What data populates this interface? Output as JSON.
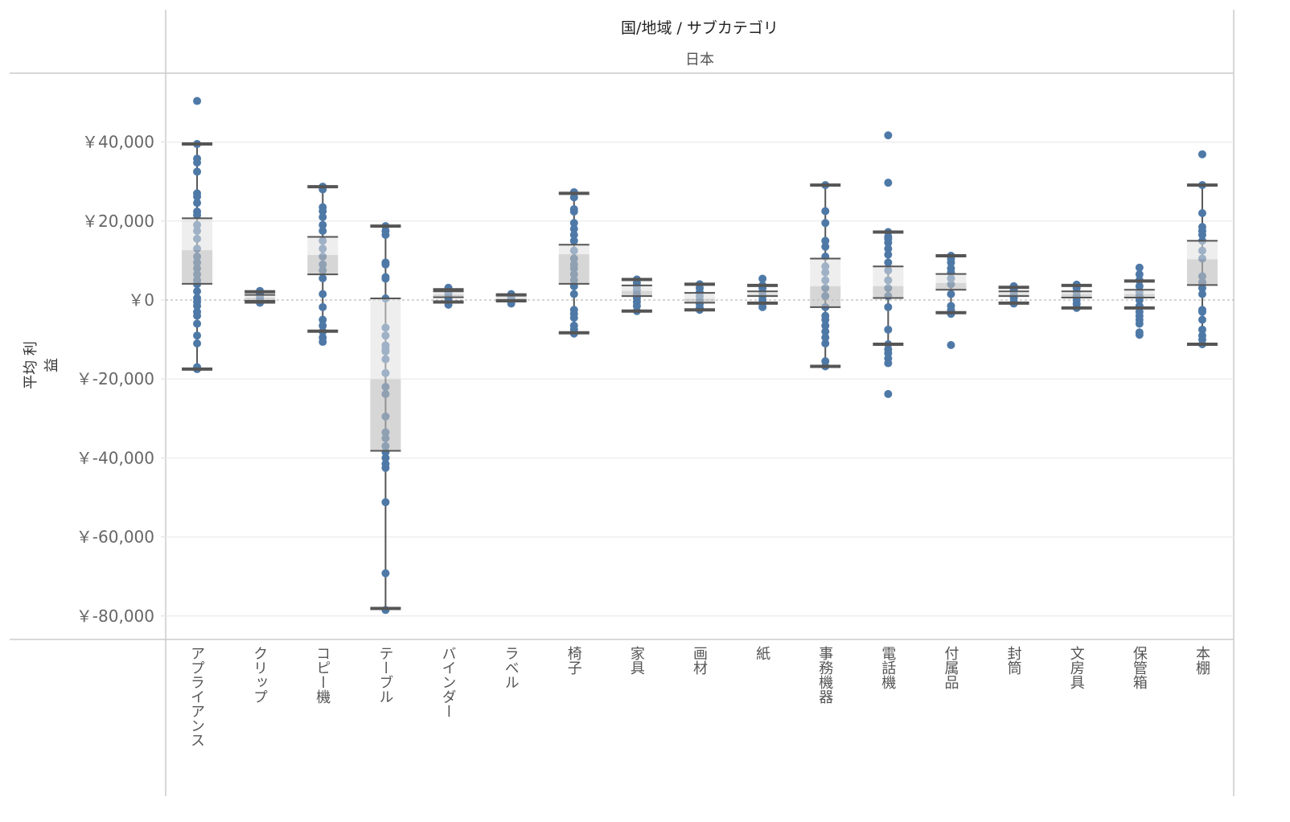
{
  "header": {
    "title": "国/地域 / サブカテゴリ",
    "subtitle": "日本"
  },
  "chart_data": {
    "type": "boxplot",
    "title": "国/地域 / サブカテゴリ",
    "panel": "日本",
    "xlabel": "サブカテゴリ",
    "ylabel": "平均 利益",
    "ylim": [
      -85500,
      57400
    ],
    "yticks": [
      40000,
      20000,
      0,
      -20000,
      -40000,
      -60000,
      -80000
    ],
    "ytick_labels": [
      "￥40,000",
      "￥20,000",
      "￥0",
      "￥-20,000",
      "￥-40,000",
      "￥-60,000",
      "￥-80,000"
    ],
    "grid": true,
    "colors": {
      "point": "#4e79a7",
      "upper_box": "#e0e0e0",
      "lower_box": "#bababa",
      "whisker": "#555555"
    },
    "categories": [
      "アプライアンス",
      "クリップ",
      "コピー機",
      "テーブル",
      "バインダー",
      "ラベル",
      "椅子",
      "家具",
      "画材",
      "紙",
      "事務機器",
      "電話機",
      "付属品",
      "封筒",
      "文房具",
      "保管箱",
      "本棚"
    ],
    "boxes": [
      {
        "low": -17500,
        "q1": 4100,
        "median": 12600,
        "q3": 20700,
        "high": 39500
      },
      {
        "low": -500,
        "q1": -200,
        "median": 600,
        "q3": 1300,
        "high": 2100
      },
      {
        "low": -7900,
        "q1": 6500,
        "median": 11400,
        "q3": 16000,
        "high": 28700
      },
      {
        "low": -78100,
        "q1": -38200,
        "median": -20100,
        "q3": 400,
        "high": 18700
      },
      {
        "low": -500,
        "q1": 700,
        "median": 1400,
        "q3": 2200,
        "high": 2600
      },
      {
        "low": -200,
        "q1": -100,
        "median": 500,
        "q3": 1200,
        "high": 1300
      },
      {
        "low": -8300,
        "q1": 4100,
        "median": 11600,
        "q3": 14000,
        "high": 27000
      },
      {
        "low": -2800,
        "q1": 1000,
        "median": 2300,
        "q3": 3700,
        "high": 5200
      },
      {
        "low": -2500,
        "q1": -700,
        "median": 300,
        "q3": 1800,
        "high": 4000
      },
      {
        "low": -800,
        "q1": 1000,
        "median": 1500,
        "q3": 2200,
        "high": 3700
      },
      {
        "low": -16800,
        "q1": -1800,
        "median": 3500,
        "q3": 10500,
        "high": 29100
      },
      {
        "low": -11200,
        "q1": 500,
        "median": 3500,
        "q3": 8500,
        "high": 17200
      },
      {
        "low": -3200,
        "q1": 2600,
        "median": 4300,
        "q3": 6600,
        "high": 11200
      },
      {
        "low": -800,
        "q1": 1000,
        "median": 1500,
        "q3": 2200,
        "high": 3200
      },
      {
        "low": -2000,
        "q1": 600,
        "median": 1500,
        "q3": 2200,
        "high": 3700
      },
      {
        "low": -2000,
        "q1": 600,
        "median": 1500,
        "q3": 2600,
        "high": 4800
      },
      {
        "low": -11200,
        "q1": 3800,
        "median": 10300,
        "q3": 15000,
        "high": 29100
      }
    ],
    "points": [
      [
        50400,
        39500,
        35800,
        34800,
        32500,
        27000,
        26200,
        24600,
        22400,
        21500,
        19000,
        17500,
        15500,
        13000,
        11000,
        9500,
        8000,
        6500,
        5000,
        4000,
        2200,
        500,
        -500,
        -1500,
        -3000,
        -4000,
        -6000,
        -9000,
        -11000,
        -17000,
        -17500
      ],
      [
        2300,
        1500,
        800,
        200,
        -400,
        -700
      ],
      [
        28700,
        28000,
        23500,
        22500,
        21000,
        19000,
        17500,
        15000,
        13000,
        11000,
        9000,
        7500,
        5500,
        1500,
        -1800,
        -5000,
        -6500,
        -8000,
        -9500,
        -10600
      ],
      [
        18700,
        17500,
        16500,
        9500,
        9000,
        5800,
        5400,
        400,
        -7000,
        -9000,
        -11500,
        -12500,
        -13000,
        -15000,
        -18500,
        -22000,
        -23800,
        -29500,
        -33500,
        -35000,
        -37000,
        -38500,
        -40000,
        -41500,
        -42500,
        -51200,
        -69200,
        -78500
      ],
      [
        3100,
        2500,
        1800,
        1000,
        200,
        -500,
        -1200
      ],
      [
        1500,
        800,
        300,
        -200,
        -900
      ],
      [
        27300,
        26000,
        23000,
        22400,
        19500,
        18000,
        16500,
        15000,
        12500,
        10500,
        9000,
        8000,
        6500,
        5000,
        3500,
        1500,
        -2500,
        -3500,
        -4500,
        -6500,
        -7500,
        -8500
      ],
      [
        5200,
        4300,
        3500,
        2500,
        1500,
        500,
        -500,
        -1500,
        -2800
      ],
      [
        4000,
        3000,
        2000,
        1000,
        0,
        -1000,
        -2000,
        -2500
      ],
      [
        5400,
        3700,
        3000,
        2000,
        1000,
        0,
        -800,
        -1800
      ],
      [
        29100,
        22500,
        19500,
        15000,
        13500,
        11000,
        8500,
        7000,
        5000,
        3000,
        1000,
        -1800,
        -4000,
        -5000,
        -6500,
        -8000,
        -9500,
        -11000,
        -15500,
        -16800
      ],
      [
        41700,
        29700,
        17200,
        16000,
        15500,
        14500,
        13000,
        11500,
        9500,
        7500,
        5000,
        3000,
        1000,
        -1800,
        -7500,
        -11200,
        -12500,
        -13500,
        -14800,
        -16000,
        -23800
      ],
      [
        11200,
        10500,
        9500,
        8000,
        7000,
        5500,
        4000,
        1500,
        -1500,
        -2600,
        -3500,
        -11400
      ],
      [
        3500,
        2500,
        1500,
        500,
        -500,
        -900
      ],
      [
        3900,
        3000,
        2000,
        1000,
        0,
        -1000,
        -2000
      ],
      [
        8200,
        6500,
        5000,
        3500,
        2000,
        1000,
        0,
        -1500,
        -3000,
        -4000,
        -5000,
        -6000,
        -8200,
        -8800
      ],
      [
        36900,
        29100,
        22000,
        18500,
        17500,
        16500,
        15000,
        12500,
        10500,
        6000,
        4500,
        3000,
        1500,
        -2500,
        -3000,
        -5000,
        -7500,
        -9000,
        -10000,
        -11200
      ]
    ]
  }
}
